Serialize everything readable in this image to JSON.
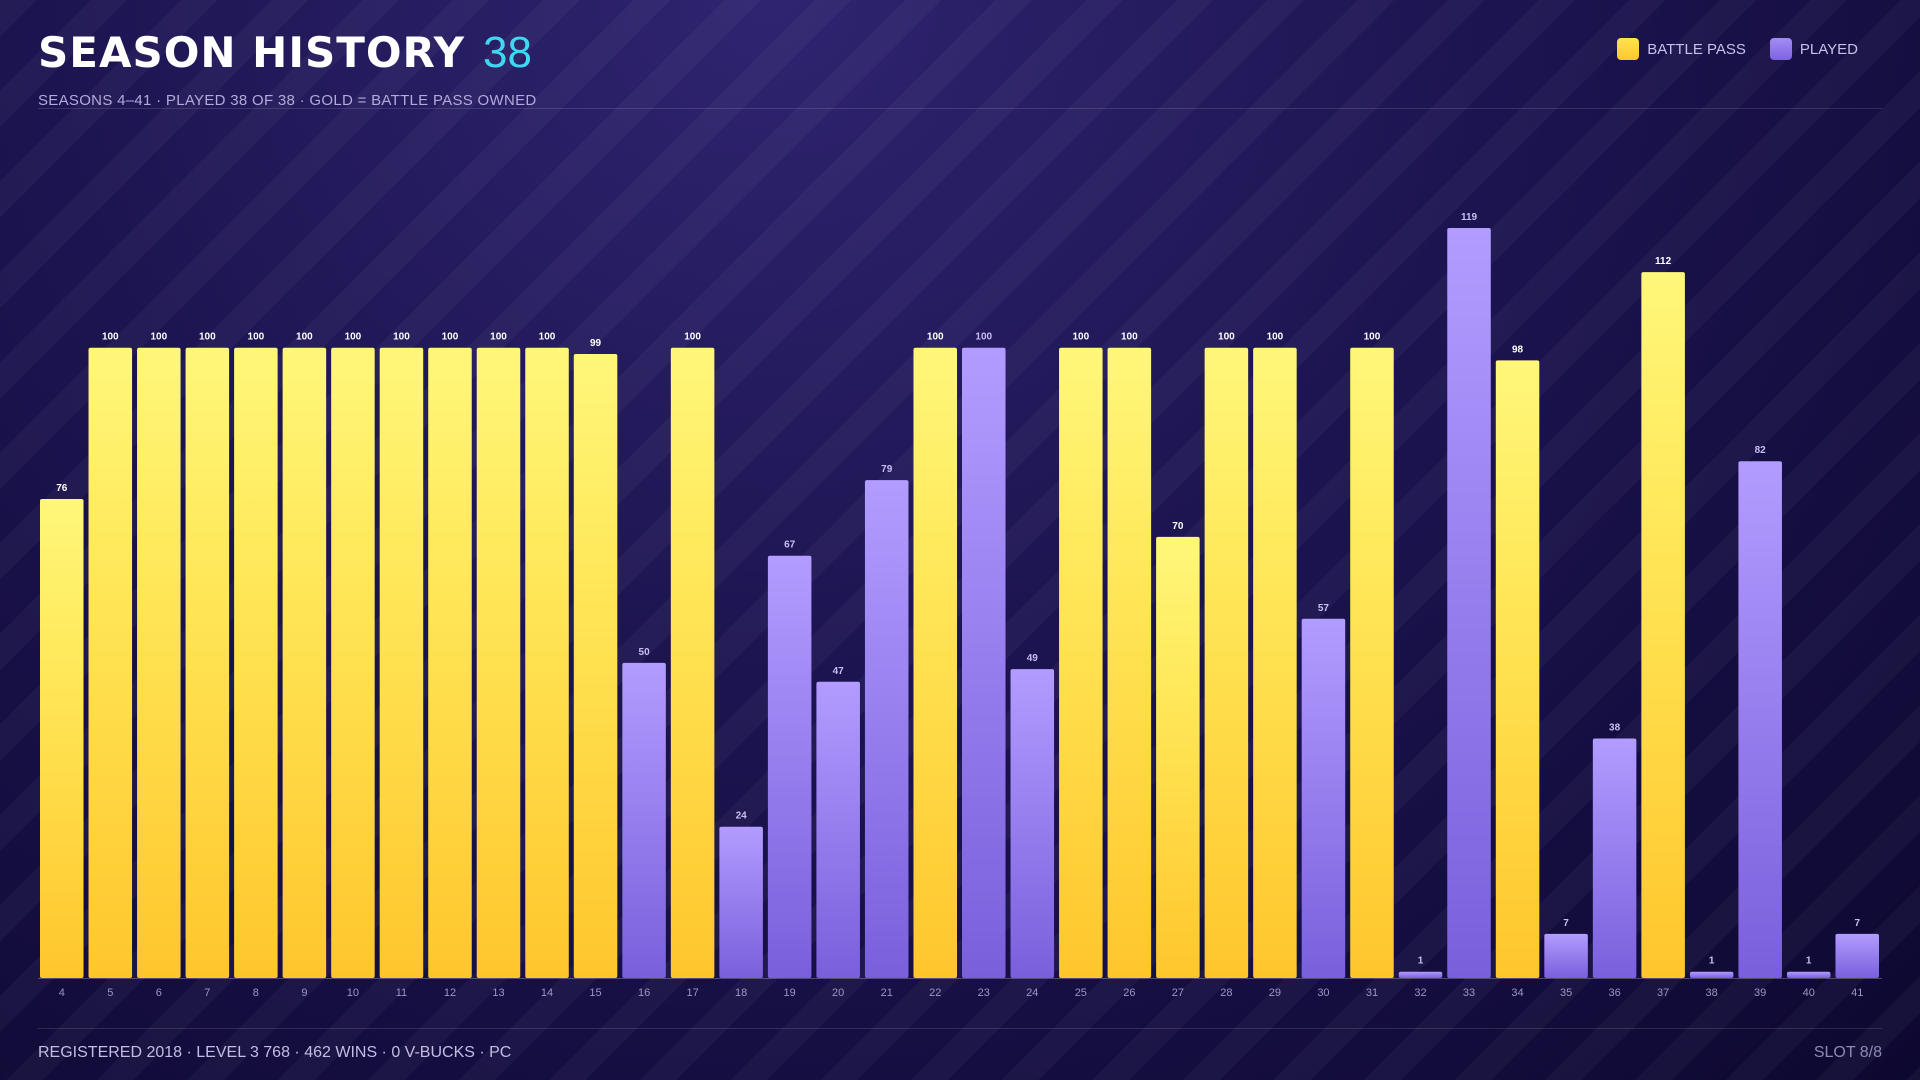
{
  "header": {
    "title": "SEASON HISTORY",
    "count": "38",
    "subtitle": "SEASONS 4–41 · PLAYED 38 OF 38 · GOLD = BATTLE PASS OWNED"
  },
  "legend": {
    "battle_pass": "BATTLE PASS",
    "played": "PLAYED"
  },
  "footer": {
    "left": "REGISTERED 2018 · LEVEL 3 768 · 462 WINS · 0 V-BUCKS · PC",
    "right": "SLOT 8/8"
  },
  "colors": {
    "battle_pass": "#ffd83a",
    "played": "#8f76ea",
    "accent": "#3fd7f2"
  },
  "chart_data": {
    "type": "bar",
    "categories": [
      "4",
      "5",
      "6",
      "7",
      "8",
      "9",
      "10",
      "11",
      "12",
      "13",
      "14",
      "15",
      "16",
      "17",
      "18",
      "19",
      "20",
      "21",
      "22",
      "23",
      "24",
      "25",
      "26",
      "27",
      "28",
      "29",
      "30",
      "31",
      "32",
      "33",
      "34",
      "35",
      "36",
      "37",
      "38",
      "39",
      "40",
      "41"
    ],
    "series": [
      {
        "name": "BATTLE PASS",
        "values": [
          76,
          100,
          100,
          100,
          100,
          100,
          100,
          100,
          100,
          100,
          100,
          99,
          null,
          100,
          null,
          null,
          null,
          null,
          100,
          null,
          null,
          100,
          100,
          70,
          100,
          100,
          null,
          100,
          null,
          null,
          98,
          null,
          null,
          112,
          null,
          null,
          null,
          null
        ]
      },
      {
        "name": "PLAYED",
        "values": [
          null,
          null,
          null,
          null,
          null,
          null,
          null,
          null,
          null,
          null,
          null,
          null,
          50,
          null,
          24,
          67,
          47,
          79,
          null,
          100,
          49,
          null,
          null,
          null,
          null,
          null,
          57,
          null,
          1,
          119,
          null,
          7,
          38,
          null,
          1,
          82,
          1,
          7
        ]
      }
    ],
    "ylim": [
      0,
      119
    ],
    "grid": false,
    "legend_position": "top-right"
  }
}
